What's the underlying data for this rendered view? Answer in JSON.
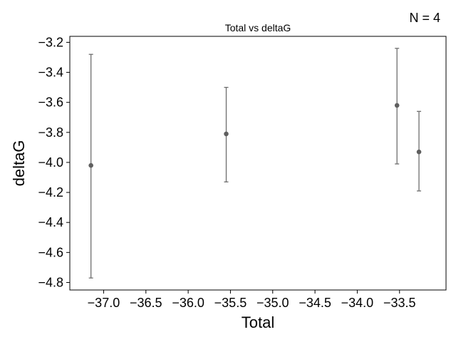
{
  "n_label": "N = 4",
  "chart_data": {
    "type": "scatter",
    "title": "Total vs deltaG",
    "xlabel": "Total",
    "ylabel": "deltaG",
    "xlim": [
      -37.4,
      -32.95
    ],
    "ylim": [
      -4.85,
      -3.16
    ],
    "x_ticks": [
      -37.0,
      -36.5,
      -36.0,
      -35.5,
      -35.0,
      -34.5,
      -34.0,
      -33.5
    ],
    "x_tick_labels": [
      "−37.0",
      "−36.5",
      "−36.0",
      "−35.5",
      "−35.0",
      "−34.5",
      "−34.0",
      "−33.5"
    ],
    "y_ticks": [
      -3.2,
      -3.4,
      -3.6,
      -3.8,
      -4.0,
      -4.2,
      -4.4,
      -4.6,
      -4.8
    ],
    "y_tick_labels": [
      "−3.2",
      "−3.4",
      "−3.6",
      "−3.8",
      "−4.0",
      "−4.2",
      "−4.4",
      "−4.6",
      "−4.8"
    ],
    "grid": false,
    "points": [
      {
        "x": -37.15,
        "y": -4.02,
        "yerr_low": -4.77,
        "yerr_high": -3.28
      },
      {
        "x": -35.55,
        "y": -3.81,
        "yerr_low": -4.13,
        "yerr_high": -3.5
      },
      {
        "x": -33.53,
        "y": -3.62,
        "yerr_low": -4.01,
        "yerr_high": -3.24
      },
      {
        "x": -33.27,
        "y": -3.93,
        "yerr_low": -4.19,
        "yerr_high": -3.66
      }
    ],
    "marker_color": "#5f5f5f",
    "errorbar_color": "#6e6e6e"
  }
}
